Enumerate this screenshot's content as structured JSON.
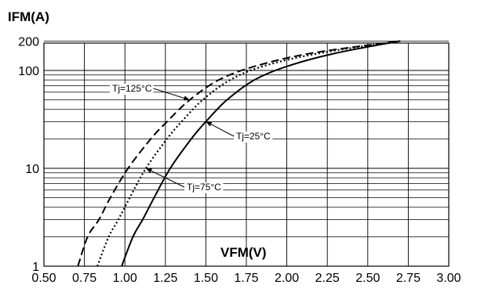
{
  "chart_data": {
    "type": "line",
    "ylabel": "IFM(A)",
    "xlabel": "VFM(V)",
    "xlim": [
      0.5,
      3.0
    ],
    "ylim": [
      1,
      200
    ],
    "yscale": "log",
    "grid": true,
    "x_ticks": [
      "0.50",
      "0.75",
      "1.00",
      "1.25",
      "1.50",
      "1.75",
      "2.00",
      "2.25",
      "2.50",
      "2.75",
      "3.00"
    ],
    "y_ticks": [
      "1",
      "10",
      "100",
      "200"
    ],
    "series": [
      {
        "name": "Tj=25°C",
        "line_style": "solid",
        "color": "#000000",
        "points": [
          [
            0.98,
            1
          ],
          [
            1.05,
            2
          ],
          [
            1.11,
            3
          ],
          [
            1.18,
            5
          ],
          [
            1.28,
            10
          ],
          [
            1.41,
            20
          ],
          [
            1.5,
            30
          ],
          [
            1.63,
            50
          ],
          [
            1.8,
            80
          ],
          [
            2.0,
            110
          ],
          [
            2.3,
            150
          ],
          [
            2.7,
            200
          ]
        ]
      },
      {
        "name": "Tj=75°C",
        "line_style": "dotted",
        "color": "#000000",
        "points": [
          [
            0.83,
            1
          ],
          [
            0.9,
            2
          ],
          [
            0.96,
            3
          ],
          [
            1.03,
            5
          ],
          [
            1.13,
            10
          ],
          [
            1.26,
            20
          ],
          [
            1.35,
            30
          ],
          [
            1.48,
            50
          ],
          [
            1.65,
            80
          ],
          [
            1.85,
            110
          ],
          [
            2.2,
            150
          ],
          [
            2.7,
            200
          ]
        ]
      },
      {
        "name": "Tj=125°C",
        "line_style": "dashed",
        "color": "#000000",
        "points": [
          [
            0.71,
            1
          ],
          [
            0.77,
            2
          ],
          [
            0.84,
            3
          ],
          [
            0.91,
            5
          ],
          [
            1.02,
            10
          ],
          [
            1.16,
            20
          ],
          [
            1.26,
            30
          ],
          [
            1.4,
            50
          ],
          [
            1.58,
            80
          ],
          [
            1.8,
            110
          ],
          [
            2.15,
            150
          ],
          [
            2.7,
            200
          ]
        ]
      }
    ],
    "annotations": [
      {
        "text": "Tj=125°C",
        "points_to": [
          1.4,
          50
        ]
      },
      {
        "text": "Tj=25°C",
        "points_to": [
          1.5,
          30
        ]
      },
      {
        "text": "Tj=75°C",
        "points_to": [
          1.13,
          10
        ]
      }
    ]
  }
}
